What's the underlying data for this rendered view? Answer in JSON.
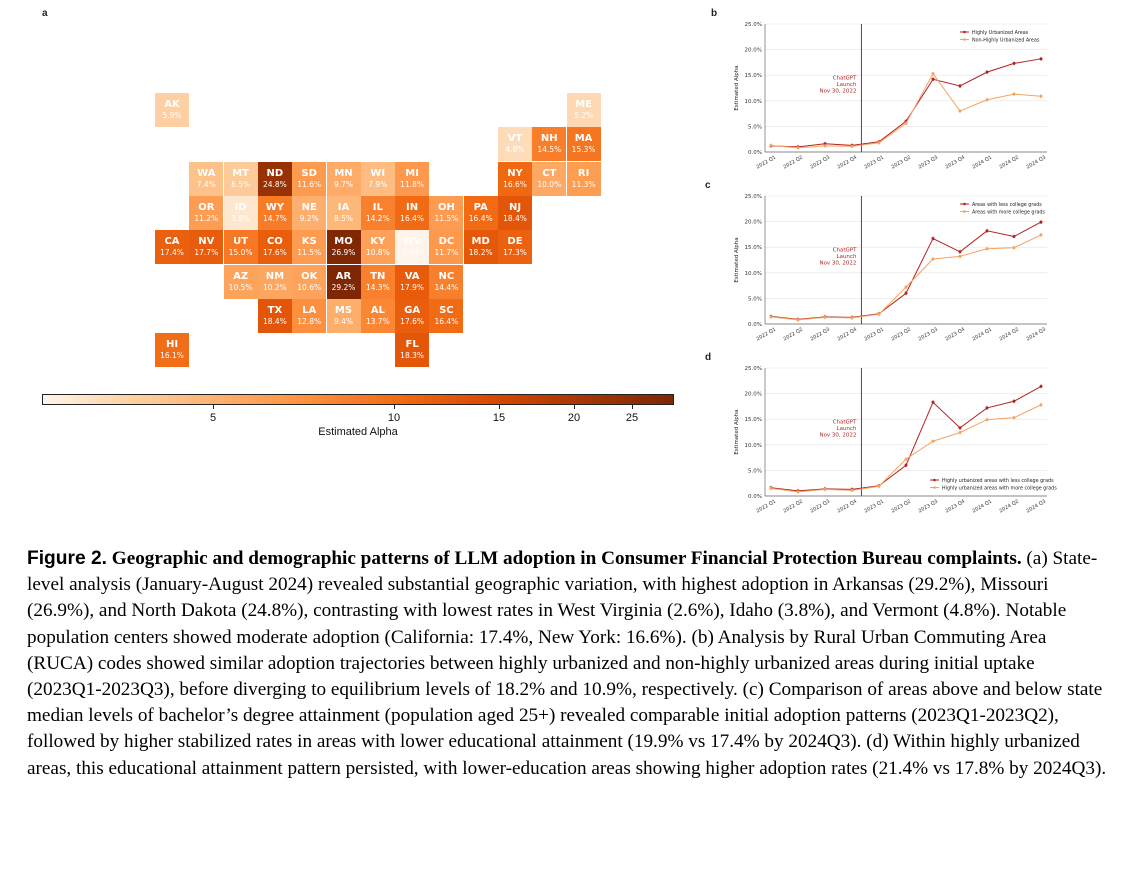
{
  "panels": {
    "a": "a",
    "b": "b",
    "c": "c",
    "d": "d"
  },
  "map": {
    "colorbar": {
      "title": "Estimated Alpha",
      "ticks": [
        {
          "label": "5",
          "value": 5
        },
        {
          "label": "10",
          "value": 10
        },
        {
          "label": "15",
          "value": 15
        },
        {
          "label": "20",
          "value": 20
        },
        {
          "label": "25",
          "value": 25
        }
      ]
    },
    "states": [
      {
        "abbr": "AK",
        "value": "5.9%",
        "alpha": 5.9
      },
      {
        "abbr": "ME",
        "value": "5.2%",
        "alpha": 5.2
      },
      {
        "abbr": "VT",
        "value": "4.8%",
        "alpha": 4.8
      },
      {
        "abbr": "NH",
        "value": "14.5%",
        "alpha": 14.5
      },
      {
        "abbr": "MA",
        "value": "15.3%",
        "alpha": 15.3
      },
      {
        "abbr": "WA",
        "value": "7.4%",
        "alpha": 7.4
      },
      {
        "abbr": "MT",
        "value": "6.5%",
        "alpha": 6.5
      },
      {
        "abbr": "ND",
        "value": "24.8%",
        "alpha": 24.8
      },
      {
        "abbr": "SD",
        "value": "11.6%",
        "alpha": 11.6
      },
      {
        "abbr": "MN",
        "value": "9.7%",
        "alpha": 9.7
      },
      {
        "abbr": "WI",
        "value": "7.9%",
        "alpha": 7.9
      },
      {
        "abbr": "MI",
        "value": "11.8%",
        "alpha": 11.8
      },
      {
        "abbr": "NY",
        "value": "16.6%",
        "alpha": 16.6
      },
      {
        "abbr": "CT",
        "value": "10.0%",
        "alpha": 10.0
      },
      {
        "abbr": "RI",
        "value": "11.3%",
        "alpha": 11.3
      },
      {
        "abbr": "OR",
        "value": "11.2%",
        "alpha": 11.2
      },
      {
        "abbr": "ID",
        "value": "3.8%",
        "alpha": 3.8
      },
      {
        "abbr": "WY",
        "value": "14.7%",
        "alpha": 14.7
      },
      {
        "abbr": "NE",
        "value": "9.2%",
        "alpha": 9.2
      },
      {
        "abbr": "IA",
        "value": "8.5%",
        "alpha": 8.5
      },
      {
        "abbr": "IL",
        "value": "14.2%",
        "alpha": 14.2
      },
      {
        "abbr": "IN",
        "value": "16.4%",
        "alpha": 16.4
      },
      {
        "abbr": "OH",
        "value": "11.5%",
        "alpha": 11.5
      },
      {
        "abbr": "PA",
        "value": "16.4%",
        "alpha": 16.4
      },
      {
        "abbr": "NJ",
        "value": "18.4%",
        "alpha": 18.4
      },
      {
        "abbr": "CA",
        "value": "17.4%",
        "alpha": 17.4
      },
      {
        "abbr": "NV",
        "value": "17.7%",
        "alpha": 17.7
      },
      {
        "abbr": "UT",
        "value": "15.0%",
        "alpha": 15.0
      },
      {
        "abbr": "CO",
        "value": "17.6%",
        "alpha": 17.6
      },
      {
        "abbr": "KS",
        "value": "11.5%",
        "alpha": 11.5
      },
      {
        "abbr": "MO",
        "value": "26.9%",
        "alpha": 26.9
      },
      {
        "abbr": "KY",
        "value": "10.8%",
        "alpha": 10.8
      },
      {
        "abbr": "WV",
        "value": "2.6%",
        "alpha": 2.6
      },
      {
        "abbr": "DC",
        "value": "11.7%",
        "alpha": 11.7
      },
      {
        "abbr": "MD",
        "value": "18.2%",
        "alpha": 18.2
      },
      {
        "abbr": "DE",
        "value": "17.3%",
        "alpha": 17.3
      },
      {
        "abbr": "AZ",
        "value": "10.5%",
        "alpha": 10.5
      },
      {
        "abbr": "NM",
        "value": "10.2%",
        "alpha": 10.2
      },
      {
        "abbr": "OK",
        "value": "10.6%",
        "alpha": 10.6
      },
      {
        "abbr": "AR",
        "value": "29.2%",
        "alpha": 29.2
      },
      {
        "abbr": "TN",
        "value": "14.3%",
        "alpha": 14.3
      },
      {
        "abbr": "VA",
        "value": "17.9%",
        "alpha": 17.9
      },
      {
        "abbr": "NC",
        "value": "14.4%",
        "alpha": 14.4
      },
      {
        "abbr": "TX",
        "value": "18.4%",
        "alpha": 18.4
      },
      {
        "abbr": "LA",
        "value": "12.8%",
        "alpha": 12.8
      },
      {
        "abbr": "MS",
        "value": "9.4%",
        "alpha": 9.4
      },
      {
        "abbr": "AL",
        "value": "13.7%",
        "alpha": 13.7
      },
      {
        "abbr": "GA",
        "value": "17.6%",
        "alpha": 17.6
      },
      {
        "abbr": "SC",
        "value": "16.4%",
        "alpha": 16.4
      },
      {
        "abbr": "HI",
        "value": "16.1%",
        "alpha": 16.1
      },
      {
        "abbr": "FL",
        "value": "18.3%",
        "alpha": 18.3
      }
    ]
  },
  "chart_data": [
    {
      "id": "b",
      "type": "line",
      "ylabel": "Estimated Alpha",
      "ylim": [
        0,
        25
      ],
      "yticks": [
        "0.0%",
        "5.0%",
        "10.0%",
        "15.0%",
        "20.0%",
        "25.0%"
      ],
      "categories": [
        "2022 Q1",
        "2022 Q2",
        "2022 Q3",
        "2022 Q4",
        "2023 Q1",
        "2023 Q2",
        "2023 Q3",
        "2023 Q4",
        "2024 Q1",
        "2024 Q2",
        "2024 Q3"
      ],
      "annotation": {
        "lines": [
          "ChatGPT",
          "Launch",
          "Nov 30, 2022"
        ],
        "between": [
          "2022 Q4",
          "2023 Q1"
        ]
      },
      "legend": "top-right",
      "series": [
        {
          "name": "Highly Urbanized Areas",
          "color": "#b22222",
          "values": [
            1.2,
            1.0,
            1.6,
            1.3,
            2.0,
            6.0,
            14.2,
            12.9,
            15.6,
            17.3,
            18.2
          ]
        },
        {
          "name": "Non-Highly Urbanized Areas",
          "color": "#f4a460",
          "values": [
            1.3,
            0.8,
            1.2,
            1.1,
            1.8,
            5.6,
            15.3,
            8.0,
            10.2,
            11.3,
            10.9
          ]
        }
      ]
    },
    {
      "id": "c",
      "type": "line",
      "ylabel": "Estimated Alpha",
      "ylim": [
        0,
        25
      ],
      "yticks": [
        "0.0%",
        "5.0%",
        "10.0%",
        "15.0%",
        "20.0%",
        "25.0%"
      ],
      "categories": [
        "2022 Q1",
        "2022 Q2",
        "2022 Q3",
        "2022 Q4",
        "2023 Q1",
        "2023 Q2",
        "2023 Q3",
        "2023 Q4",
        "2024 Q1",
        "2024 Q2",
        "2024 Q3"
      ],
      "annotation": {
        "lines": [
          "ChatGPT",
          "Launch",
          "Nov 30, 2022"
        ],
        "between": [
          "2022 Q4",
          "2023 Q1"
        ]
      },
      "legend": "top-right",
      "series": [
        {
          "name": "Areas with less college grads",
          "color": "#b22222",
          "values": [
            1.5,
            0.9,
            1.4,
            1.3,
            2.0,
            6.0,
            16.7,
            14.1,
            18.2,
            17.1,
            19.9
          ]
        },
        {
          "name": "Areas with more college grads",
          "color": "#f4a460",
          "values": [
            1.4,
            0.8,
            1.3,
            1.2,
            1.9,
            7.2,
            12.7,
            13.2,
            14.7,
            14.9,
            17.4
          ]
        }
      ]
    },
    {
      "id": "d",
      "type": "line",
      "ylabel": "Estimated Alpha",
      "ylim": [
        0,
        25
      ],
      "yticks": [
        "0.0%",
        "5.0%",
        "10.0%",
        "15.0%",
        "20.0%",
        "25.0%"
      ],
      "categories": [
        "2022 Q1",
        "2022 Q2",
        "2022 Q3",
        "2022 Q4",
        "2023 Q1",
        "2023 Q2",
        "2023 Q3",
        "2023 Q4",
        "2024 Q1",
        "2024 Q2",
        "2024 Q3"
      ],
      "annotation": {
        "lines": [
          "ChatGPT",
          "Launch",
          "Nov 30, 2022"
        ],
        "between": [
          "2022 Q4",
          "2023 Q1"
        ]
      },
      "legend": "bottom-right",
      "series": [
        {
          "name": "Highly urbanized areas with less college grads",
          "color": "#b22222",
          "values": [
            1.6,
            1.0,
            1.4,
            1.3,
            2.0,
            6.0,
            18.3,
            13.3,
            17.2,
            18.5,
            21.4
          ]
        },
        {
          "name": "Highly urbanized areas with more college grads",
          "color": "#f4a460",
          "values": [
            1.5,
            0.8,
            1.3,
            1.1,
            1.9,
            7.2,
            10.7,
            12.4,
            14.9,
            15.3,
            17.8
          ]
        }
      ]
    }
  ],
  "caption": {
    "label": "Figure 2.",
    "title": "Geographic and demographic patterns of LLM adoption in Consumer Financial Protection Bureau complaints.",
    "body": "(a) State-level analysis (January-August 2024) revealed substantial geographic variation, with highest adoption in Arkansas (29.2%), Missouri (26.9%), and North Dakota (24.8%), contrasting with lowest rates in West Virginia (2.6%), Idaho (3.8%), and Vermont (4.8%). Notable population centers showed moderate adoption (California: 17.4%, New York: 16.6%). (b) Analysis by Rural Urban Commuting Area (RUCA) codes showed similar adoption trajectories between highly urbanized and non-highly urbanized areas during initial uptake (2023Q1-2023Q3), before diverging to equilibrium levels of 18.2% and 10.9%, respectively. (c) Comparison of areas above and below state median levels of bachelor’s degree attainment (population aged 25+) revealed comparable initial adoption patterns (2023Q1-2023Q2), followed by higher stabilized rates in areas with lower educational attainment (19.9% vs 17.4% by 2024Q3). (d) Within highly urbanized areas, this educational attainment pattern persisted, with lower-education areas showing higher adoption rates (21.4% vs 17.8% by 2024Q3)."
  }
}
